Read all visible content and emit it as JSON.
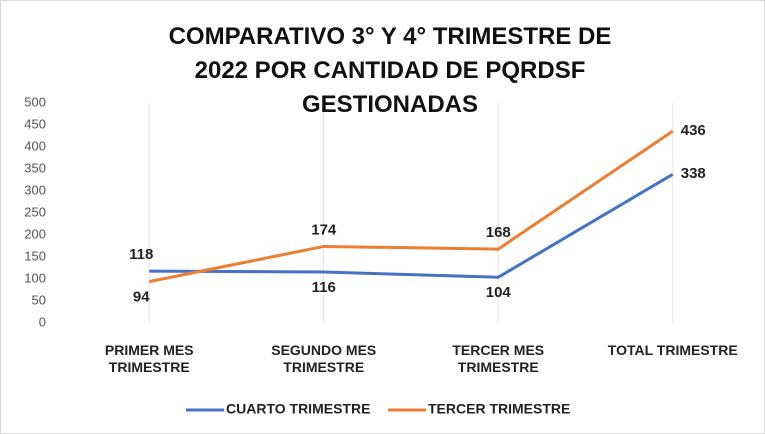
{
  "chart_data": {
    "type": "line",
    "title": "COMPARATIVO 3° Y 4° TRIMESTRE DE 2022 POR CANTIDAD DE PQRDSF GESTIONADAS",
    "categories": [
      "PRIMER MES TRIMESTRE",
      "SEGUNDO MES TRIMESTRE",
      "TERCER MES TRIMESTRE",
      "TOTAL TRIMESTRE"
    ],
    "series": [
      {
        "name": "CUARTO TRIMESTRE",
        "color": "#4472c4",
        "values": [
          118,
          116,
          104,
          338
        ]
      },
      {
        "name": "TERCER TRIMESTRE",
        "color": "#ed7d31",
        "values": [
          94,
          174,
          168,
          436
        ]
      }
    ],
    "ylim": [
      0,
      500
    ],
    "yticks": [
      0,
      50,
      100,
      150,
      200,
      250,
      300,
      350,
      400,
      450,
      500
    ],
    "grid": true,
    "legend": "bottom"
  }
}
